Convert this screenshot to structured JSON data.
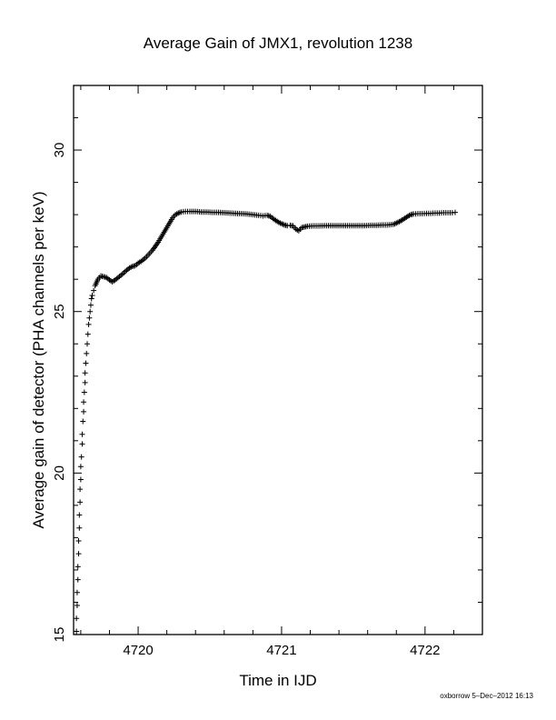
{
  "chart_data": {
    "type": "scatter",
    "title": "Average Gain of JMX1, revolution 1238",
    "xlabel": "Time in IJD",
    "ylabel": "Average gain of detector (PHA channels per keV)",
    "xlim": [
      4719.55,
      4722.4
    ],
    "ylim": [
      15,
      32
    ],
    "x_ticks": [
      4720,
      4721,
      4722
    ],
    "y_ticks": [
      15,
      20,
      25,
      30
    ],
    "grid": false,
    "marker": "+",
    "series": [
      {
        "points": [
          [
            4719.57,
            15.1
          ],
          [
            4719.57,
            15.5
          ],
          [
            4719.575,
            15.9
          ],
          [
            4719.575,
            16.3
          ],
          [
            4719.58,
            16.7
          ],
          [
            4719.58,
            17.1
          ],
          [
            4719.585,
            17.5
          ],
          [
            4719.585,
            17.9
          ],
          [
            4719.59,
            18.3
          ],
          [
            4719.59,
            18.7
          ],
          [
            4719.595,
            19.1
          ],
          [
            4719.595,
            19.5
          ],
          [
            4719.6,
            19.8
          ],
          [
            4719.6,
            20.2
          ],
          [
            4719.605,
            20.5
          ],
          [
            4719.61,
            20.9
          ],
          [
            4719.61,
            21.2
          ],
          [
            4719.615,
            21.6
          ],
          [
            4719.62,
            21.9
          ],
          [
            4719.62,
            22.2
          ],
          [
            4719.625,
            22.5
          ],
          [
            4719.63,
            22.8
          ],
          [
            4719.63,
            23.1
          ],
          [
            4719.635,
            23.4
          ],
          [
            4719.64,
            23.7
          ],
          [
            4719.645,
            24.0
          ],
          [
            4719.65,
            24.3
          ],
          [
            4719.655,
            24.6
          ],
          [
            4719.66,
            24.8
          ],
          [
            4719.665,
            25.0
          ],
          [
            4719.67,
            25.2
          ],
          [
            4719.675,
            25.4
          ],
          [
            4719.68,
            25.5
          ],
          [
            4719.69,
            25.65
          ],
          [
            4719.7,
            25.8
          ],
          [
            4719.71,
            25.9
          ],
          [
            4719.72,
            26.0
          ],
          [
            4719.73,
            26.05
          ],
          [
            4719.74,
            26.1
          ],
          [
            4719.76,
            26.08
          ],
          [
            4719.78,
            26.05
          ],
          [
            4719.8,
            25.98
          ],
          [
            4719.82,
            25.92
          ],
          [
            4719.84,
            25.98
          ],
          [
            4719.86,
            26.05
          ],
          [
            4719.88,
            26.12
          ],
          [
            4719.9,
            26.2
          ],
          [
            4719.92,
            26.28
          ],
          [
            4719.94,
            26.35
          ],
          [
            4719.96,
            26.4
          ],
          [
            4719.98,
            26.42
          ],
          [
            4720.0,
            26.5
          ],
          [
            4720.02,
            26.55
          ],
          [
            4720.04,
            26.62
          ],
          [
            4720.06,
            26.7
          ],
          [
            4720.08,
            26.8
          ],
          [
            4720.1,
            26.9
          ],
          [
            4720.12,
            27.02
          ],
          [
            4720.14,
            27.15
          ],
          [
            4720.16,
            27.3
          ],
          [
            4720.18,
            27.45
          ],
          [
            4720.2,
            27.6
          ],
          [
            4720.22,
            27.75
          ],
          [
            4720.24,
            27.9
          ],
          [
            4720.26,
            28.0
          ],
          [
            4720.28,
            28.05
          ],
          [
            4720.3,
            28.08
          ],
          [
            4720.33,
            28.1
          ],
          [
            4720.36,
            28.1
          ],
          [
            4720.4,
            28.1
          ],
          [
            4720.44,
            28.08
          ],
          [
            4720.48,
            28.08
          ],
          [
            4720.52,
            28.07
          ],
          [
            4720.56,
            28.07
          ],
          [
            4720.6,
            28.06
          ],
          [
            4720.64,
            28.05
          ],
          [
            4720.68,
            28.04
          ],
          [
            4720.72,
            28.03
          ],
          [
            4720.76,
            28.02
          ],
          [
            4720.8,
            28.0
          ],
          [
            4720.84,
            27.98
          ],
          [
            4720.87,
            27.96
          ],
          [
            4720.9,
            27.98
          ],
          [
            4720.92,
            27.95
          ],
          [
            4720.94,
            27.88
          ],
          [
            4720.96,
            27.82
          ],
          [
            4720.98,
            27.76
          ],
          [
            4721.0,
            27.72
          ],
          [
            4721.02,
            27.68
          ],
          [
            4721.04,
            27.66
          ],
          [
            4721.06,
            27.67
          ],
          [
            4721.08,
            27.65
          ],
          [
            4721.1,
            27.55
          ],
          [
            4721.12,
            27.5
          ],
          [
            4721.14,
            27.6
          ],
          [
            4721.16,
            27.62
          ],
          [
            4721.18,
            27.64
          ],
          [
            4721.22,
            27.65
          ],
          [
            4721.26,
            27.65
          ],
          [
            4721.3,
            27.66
          ],
          [
            4721.34,
            27.66
          ],
          [
            4721.38,
            27.66
          ],
          [
            4721.42,
            27.66
          ],
          [
            4721.46,
            27.66
          ],
          [
            4721.5,
            27.66
          ],
          [
            4721.54,
            27.66
          ],
          [
            4721.58,
            27.66
          ],
          [
            4721.62,
            27.67
          ],
          [
            4721.66,
            27.67
          ],
          [
            4721.7,
            27.68
          ],
          [
            4721.74,
            27.68
          ],
          [
            4721.78,
            27.7
          ],
          [
            4721.82,
            27.78
          ],
          [
            4721.85,
            27.86
          ],
          [
            4721.88,
            27.95
          ],
          [
            4721.9,
            28.0
          ],
          [
            4721.92,
            28.02
          ],
          [
            4721.95,
            28.03
          ],
          [
            4721.98,
            28.03
          ],
          [
            4722.01,
            28.04
          ],
          [
            4722.04,
            28.04
          ],
          [
            4722.07,
            28.05
          ],
          [
            4722.1,
            28.05
          ],
          [
            4722.13,
            28.06
          ],
          [
            4722.16,
            28.06
          ],
          [
            4722.19,
            28.06
          ],
          [
            4722.21,
            28.07
          ]
        ]
      }
    ]
  },
  "footer": {
    "credit": "oxborrow  5–Dec–2012 16:13"
  }
}
